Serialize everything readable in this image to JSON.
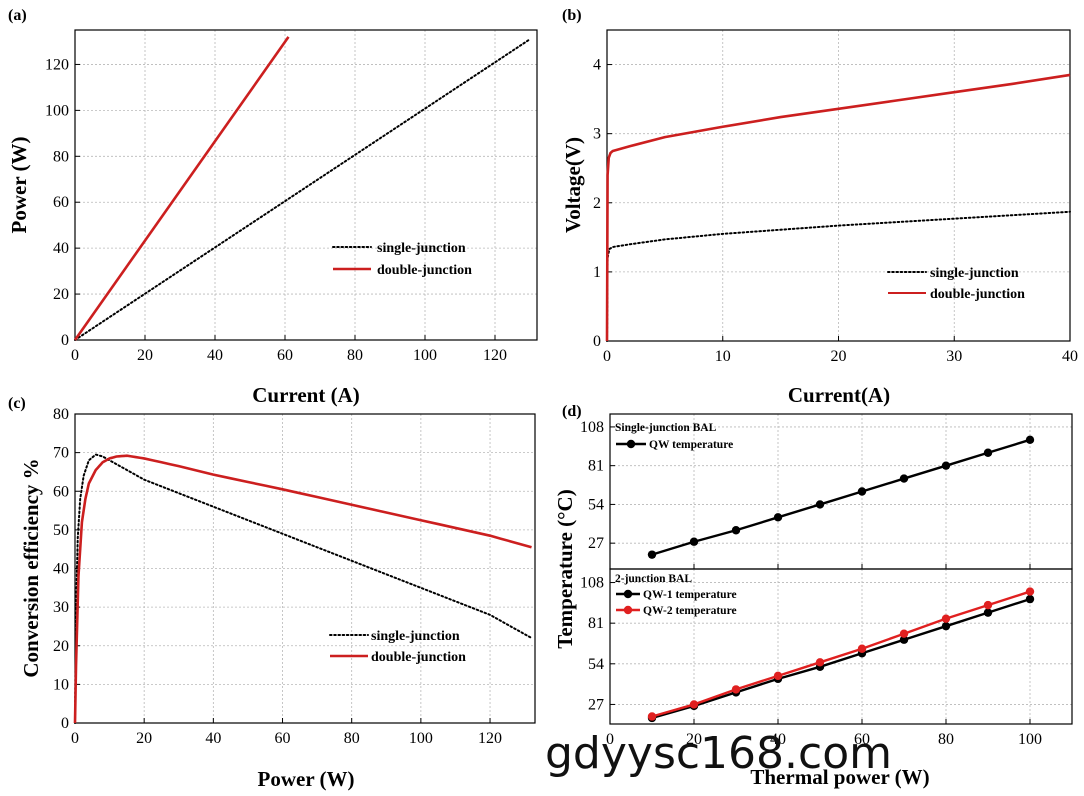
{
  "watermark": "gdyysc168.com",
  "colors": {
    "single": "#000000",
    "double": "#cc1f1f",
    "qw2": "#e02020"
  },
  "chart_data": [
    {
      "panel": "(a)",
      "type": "line",
      "xlabel": "Current (A)",
      "ylabel": "Power (W)",
      "xlim": [
        0,
        132
      ],
      "ylim": [
        0,
        135
      ],
      "xticks": [
        0,
        20,
        40,
        60,
        80,
        100,
        120
      ],
      "yticks": [
        0,
        20,
        40,
        60,
        80,
        100,
        120
      ],
      "grid": true,
      "legend_position": "center-right",
      "series": [
        {
          "name": "single-junction",
          "style": "dotted",
          "x": [
            0,
            130
          ],
          "y": [
            0,
            131
          ]
        },
        {
          "name": "double-junction",
          "style": "solid",
          "x": [
            0,
            61
          ],
          "y": [
            0,
            132
          ]
        }
      ]
    },
    {
      "panel": "(b)",
      "type": "line",
      "xlabel": "Current(A)",
      "ylabel": "Voltage(V)",
      "xlim": [
        0,
        40
      ],
      "ylim": [
        0,
        4.5
      ],
      "xticks": [
        0,
        10,
        20,
        30,
        40
      ],
      "yticks": [
        0,
        1,
        2,
        3,
        4
      ],
      "grid": true,
      "legend_position": "bottom-right",
      "series": [
        {
          "name": "single-junction",
          "style": "dotted",
          "x": [
            0,
            0.05,
            0.2,
            0.5,
            2,
            5,
            10,
            15,
            20,
            25,
            30,
            35,
            40
          ],
          "y": [
            0,
            1.2,
            1.33,
            1.36,
            1.4,
            1.47,
            1.55,
            1.61,
            1.67,
            1.72,
            1.77,
            1.82,
            1.87
          ]
        },
        {
          "name": "double-junction",
          "style": "solid",
          "x": [
            0,
            0.05,
            0.15,
            0.3,
            0.5,
            2,
            5,
            10,
            15,
            20,
            25,
            30,
            35,
            40
          ],
          "y": [
            0,
            2.4,
            2.65,
            2.72,
            2.75,
            2.82,
            2.95,
            3.1,
            3.24,
            3.36,
            3.48,
            3.6,
            3.72,
            3.85
          ]
        }
      ]
    },
    {
      "panel": "(c)",
      "type": "line",
      "xlabel": "Power (W)",
      "ylabel": "Conversion efficiency %",
      "xlim": [
        0,
        133
      ],
      "ylim": [
        0,
        80
      ],
      "xticks": [
        0,
        20,
        40,
        60,
        80,
        100,
        120
      ],
      "yticks": [
        0,
        10,
        20,
        30,
        40,
        50,
        60,
        70,
        80
      ],
      "grid": true,
      "legend_position": "bottom-right",
      "series": [
        {
          "name": "single-junction",
          "style": "dotted",
          "x": [
            0,
            0.3,
            0.8,
            1.5,
            2.5,
            4,
            6,
            8,
            10,
            20,
            40,
            60,
            80,
            100,
            120,
            132
          ],
          "y": [
            0,
            30,
            48,
            58,
            64,
            68,
            69.5,
            69,
            68,
            63,
            56,
            49,
            42,
            35,
            28,
            22
          ]
        },
        {
          "name": "double-junction",
          "style": "solid",
          "x": [
            0,
            0.3,
            1,
            2,
            3,
            4,
            6,
            8,
            10,
            12,
            15,
            20,
            30,
            40,
            60,
            80,
            100,
            120,
            132
          ],
          "y": [
            0,
            15,
            38,
            52,
            58,
            62,
            65.5,
            67.5,
            68.5,
            69,
            69.2,
            68.5,
            66.5,
            64.3,
            60.5,
            56.5,
            52.5,
            48.5,
            45.5
          ]
        }
      ]
    },
    {
      "panel": "(d)",
      "type": "line",
      "xlabel": "Thermal power (W)",
      "ylabel": "Temperature (°C)",
      "xlim": [
        0,
        110
      ],
      "xticks": [
        0,
        20,
        40,
        60,
        80,
        100
      ],
      "grid": true,
      "subplots": [
        {
          "title": "Single-junction BAL",
          "ylim": [
            9,
            117
          ],
          "yticks": [
            27,
            54,
            81,
            108
          ],
          "series": [
            {
              "name": "QW temperature",
              "color": "#000000",
              "x": [
                10,
                20,
                30,
                40,
                50,
                60,
                70,
                80,
                90,
                100
              ],
              "y": [
                19,
                28,
                36,
                45,
                54,
                63,
                72,
                81,
                90,
                99
              ]
            }
          ]
        },
        {
          "title": "2-junction BAL",
          "ylim": [
            14,
            117
          ],
          "yticks": [
            27,
            54,
            81,
            108
          ],
          "series": [
            {
              "name": "QW-1 temperature",
              "color": "#000000",
              "x": [
                10,
                20,
                30,
                40,
                50,
                60,
                70,
                80,
                90,
                100
              ],
              "y": [
                18,
                26,
                35,
                44,
                52,
                61,
                70,
                79,
                88,
                97
              ]
            },
            {
              "name": "QW-2 temperature",
              "color": "#e02020",
              "x": [
                10,
                20,
                30,
                40,
                50,
                60,
                70,
                80,
                90,
                100
              ],
              "y": [
                19,
                27,
                37,
                46,
                55,
                64,
                74,
                84,
                93,
                102
              ]
            }
          ]
        }
      ]
    }
  ]
}
